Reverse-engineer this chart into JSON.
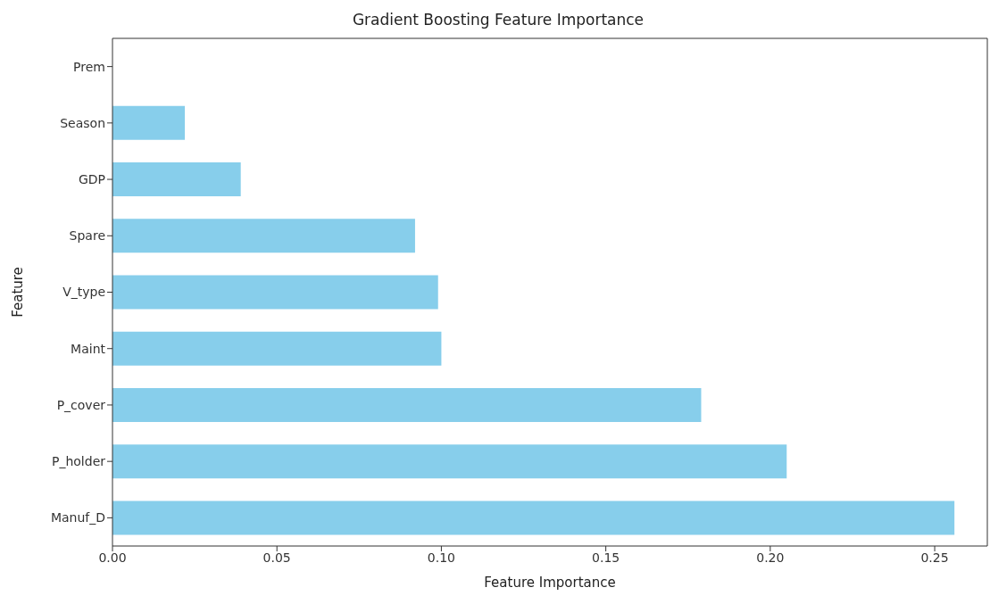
{
  "chart_data": {
    "type": "bar",
    "orientation": "horizontal",
    "title": "Gradient Boosting Feature Importance",
    "xlabel": "Feature Importance",
    "ylabel": "Feature",
    "categories": [
      "Prem",
      "Season",
      "GDP",
      "Spare",
      "V_type",
      "Maint",
      "P_cover",
      "P_holder",
      "Manuf_D"
    ],
    "values": [
      0,
      0.022,
      0.039,
      0.092,
      0.099,
      0.1,
      0.179,
      0.205,
      0.256
    ],
    "color": "#87ceeb",
    "xlim": [
      0,
      0.266
    ],
    "xticks": [
      {
        "value": 0,
        "label": "0.00"
      },
      {
        "value": 0.05,
        "label": "0.05"
      },
      {
        "value": 0.1,
        "label": "0.10"
      },
      {
        "value": 0.15,
        "label": "0.15"
      },
      {
        "value": 0.2,
        "label": "0.20"
      },
      {
        "value": 0.25,
        "label": "0.25"
      }
    ],
    "grid": false
  }
}
